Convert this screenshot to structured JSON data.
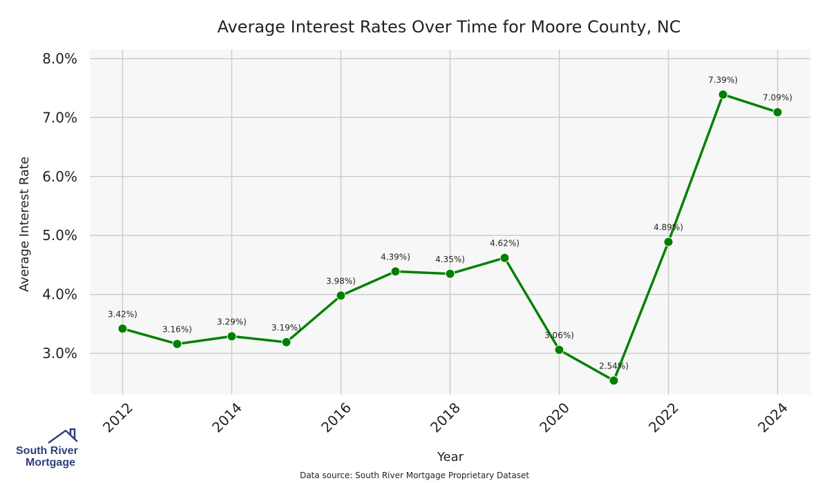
{
  "chart_data": {
    "type": "line",
    "title": "Average Interest Rates Over Time for Moore County, NC",
    "xlabel": "Year",
    "ylabel": "Average Interest Rate",
    "x": [
      2012,
      2013,
      2014,
      2015,
      2016,
      2017,
      2018,
      2019,
      2020,
      2021,
      2022,
      2023,
      2024
    ],
    "series": [
      {
        "values": [
          3.42,
          3.16,
          3.29,
          3.19,
          3.98,
          4.39,
          4.35,
          4.62,
          3.06,
          2.54,
          4.89,
          7.39,
          7.09
        ],
        "labels": [
          "3.42%)",
          "3.16%)",
          "3.29%)",
          "3.19%)",
          "3.98%)",
          "4.39%)",
          "4.35%)",
          "4.62%)",
          "3.06%)",
          "2.54%)",
          "4.89%)",
          "7.39%)",
          "7.09%)"
        ],
        "color": "#008000"
      }
    ],
    "xticks": [
      2012,
      2014,
      2016,
      2018,
      2020,
      2022,
      2024
    ],
    "xtick_labels": [
      "2012",
      "2014",
      "2016",
      "2018",
      "2020",
      "2022",
      "2024"
    ],
    "yticks": [
      3.0,
      4.0,
      5.0,
      6.0,
      7.0,
      8.0
    ],
    "ytick_labels": [
      "3.0%",
      "4.0%",
      "5.0%",
      "6.0%",
      "7.0%",
      "8.0%"
    ],
    "xlim": [
      2011.4,
      2024.6
    ],
    "ylim": [
      2.3,
      8.15
    ],
    "grid": true,
    "plot_background": "#f7f7f7",
    "grid_color": "#cccccc"
  },
  "source_note": "Data source: South River Mortgage Proprietary Dataset",
  "logo": {
    "line1": "South River",
    "line2": "Mortgage",
    "color": "#2e3f7c"
  }
}
